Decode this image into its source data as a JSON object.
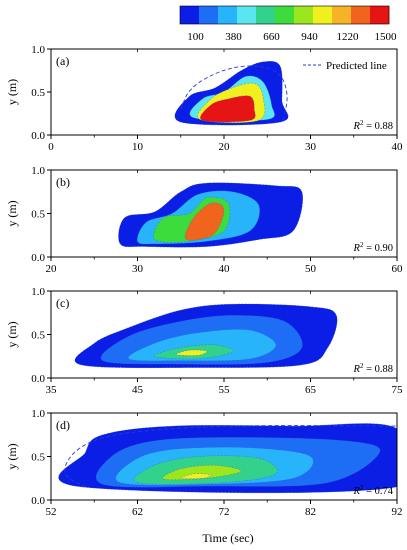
{
  "colorbar": {
    "ticks": [
      "100",
      "380",
      "660",
      "940",
      "1220",
      "1500"
    ],
    "colors": [
      "#0a1ee6",
      "#1e6ef5",
      "#28b4fa",
      "#5ae6f0",
      "#32d28c",
      "#3cdc3c",
      "#9be61e",
      "#f0f01e",
      "#f5b428",
      "#f0641e",
      "#e61414"
    ]
  },
  "chart_data": [
    {
      "type": "contour",
      "panel_label": "(a)",
      "ylabel": "y (m)",
      "xlim": [
        0,
        40
      ],
      "ylim": [
        0,
        1.0
      ],
      "xticks": [
        "0",
        "10",
        "20",
        "30",
        "40"
      ],
      "yticks": [
        "0.0",
        "0.5",
        "1.0"
      ],
      "r2_label": "R",
      "r2_value": "0.88",
      "legend": "Predicted line",
      "blobs": [
        {
          "level": 0,
          "pts": [
            [
              15,
              0.15
            ],
            [
              16,
              0.45
            ],
            [
              19,
              0.55
            ],
            [
              22,
              0.75
            ],
            [
              24.5,
              0.85
            ],
            [
              26.5,
              0.8
            ],
            [
              26.7,
              0.4
            ],
            [
              26.5,
              0.15
            ]
          ]
        },
        {
          "level": 3,
          "pts": [
            [
              16.5,
              0.2
            ],
            [
              17.5,
              0.42
            ],
            [
              20,
              0.5
            ],
            [
              22.5,
              0.68
            ],
            [
              24.5,
              0.62
            ],
            [
              25.5,
              0.35
            ],
            [
              25,
              0.18
            ]
          ]
        },
        {
          "level": 7,
          "pts": [
            [
              17.2,
              0.18
            ],
            [
              18.5,
              0.42
            ],
            [
              21,
              0.55
            ],
            [
              23.5,
              0.6
            ],
            [
              24.5,
              0.45
            ],
            [
              24,
              0.17
            ]
          ]
        },
        {
          "level": 10,
          "pts": [
            [
              17.5,
              0.17
            ],
            [
              18.5,
              0.35
            ],
            [
              20.5,
              0.42
            ],
            [
              23,
              0.45
            ],
            [
              23.5,
              0.3
            ],
            [
              23,
              0.17
            ]
          ]
        }
      ],
      "predicted_line": [
        [
          15,
          0.3
        ],
        [
          16,
          0.55
        ],
        [
          19.5,
          0.75
        ],
        [
          23,
          0.82
        ],
        [
          26.5,
          0.75
        ],
        [
          27.5,
          0.45
        ],
        [
          26.8,
          0.17
        ]
      ]
    },
    {
      "type": "contour",
      "panel_label": "(b)",
      "ylabel": "y (m)",
      "xlim": [
        20,
        60
      ],
      "ylim": [
        0,
        1.0
      ],
      "xticks": [
        "20",
        "30",
        "40",
        "50",
        "60"
      ],
      "yticks": [
        "0.0",
        "0.5",
        "1.0"
      ],
      "r2_label": "R",
      "r2_value": "0.90",
      "blobs": [
        {
          "level": 0,
          "pts": [
            [
              28,
              0.15
            ],
            [
              28.5,
              0.45
            ],
            [
              32,
              0.52
            ],
            [
              35,
              0.75
            ],
            [
              38,
              0.85
            ],
            [
              46,
              0.82
            ],
            [
              49,
              0.75
            ],
            [
              48,
              0.3
            ],
            [
              44,
              0.2
            ],
            [
              38,
              0.12
            ],
            [
              31,
              0.12
            ]
          ]
        },
        {
          "level": 2,
          "pts": [
            [
              30,
              0.18
            ],
            [
              31,
              0.4
            ],
            [
              34,
              0.5
            ],
            [
              37,
              0.72
            ],
            [
              41,
              0.75
            ],
            [
              44,
              0.6
            ],
            [
              43,
              0.3
            ],
            [
              38,
              0.18
            ],
            [
              32,
              0.15
            ]
          ]
        },
        {
          "level": 5,
          "pts": [
            [
              32,
              0.2
            ],
            [
              33,
              0.45
            ],
            [
              36,
              0.5
            ],
            [
              38,
              0.68
            ],
            [
              40.5,
              0.62
            ],
            [
              40,
              0.3
            ],
            [
              36,
              0.18
            ]
          ]
        },
        {
          "level": 9,
          "pts": [
            [
              35.5,
              0.22
            ],
            [
              36.5,
              0.45
            ],
            [
              38.5,
              0.62
            ],
            [
              40,
              0.55
            ],
            [
              39,
              0.28
            ],
            [
              37,
              0.2
            ]
          ]
        }
      ]
    },
    {
      "type": "contour",
      "panel_label": "(c)",
      "ylabel": "y (m)",
      "xlim": [
        35,
        75
      ],
      "ylim": [
        0,
        1.0
      ],
      "xticks": [
        "35",
        "45",
        "55",
        "65",
        "75"
      ],
      "yticks": [
        "0.0",
        "0.5",
        "1.0"
      ],
      "r2_label": "R",
      "r2_value": "0.88",
      "blobs": [
        {
          "level": 0,
          "pts": [
            [
              38.5,
              0.15
            ],
            [
              40,
              0.4
            ],
            [
              44,
              0.58
            ],
            [
              50,
              0.78
            ],
            [
              56,
              0.85
            ],
            [
              65,
              0.82
            ],
            [
              68,
              0.72
            ],
            [
              67,
              0.35
            ],
            [
              64,
              0.15
            ],
            [
              52,
              0.12
            ]
          ]
        },
        {
          "level": 1,
          "pts": [
            [
              41,
              0.2
            ],
            [
              44,
              0.48
            ],
            [
              50,
              0.65
            ],
            [
              56,
              0.72
            ],
            [
              62,
              0.65
            ],
            [
              64,
              0.35
            ],
            [
              60,
              0.18
            ],
            [
              50,
              0.16
            ]
          ]
        },
        {
          "level": 2,
          "pts": [
            [
              44,
              0.22
            ],
            [
              47,
              0.4
            ],
            [
              52,
              0.52
            ],
            [
              58,
              0.55
            ],
            [
              61,
              0.38
            ],
            [
              58,
              0.22
            ],
            [
              50,
              0.2
            ]
          ]
        },
        {
          "level": 4,
          "pts": [
            [
              47,
              0.25
            ],
            [
              50,
              0.35
            ],
            [
              54,
              0.38
            ],
            [
              56,
              0.3
            ],
            [
              52,
              0.22
            ]
          ]
        },
        {
          "level": 7,
          "pts": [
            [
              49.5,
              0.27
            ],
            [
              51,
              0.32
            ],
            [
              53,
              0.31
            ],
            [
              52,
              0.26
            ]
          ]
        }
      ]
    },
    {
      "type": "contour",
      "panel_label": "(d)",
      "ylabel": "y (m)",
      "xlabel": "Time (sec)",
      "xlim": [
        52,
        92
      ],
      "ylim": [
        0,
        1.0
      ],
      "xticks": [
        "52",
        "62",
        "72",
        "82",
        "92"
      ],
      "yticks": [
        "0.0",
        "0.5",
        "1.0"
      ],
      "r2_label": "R",
      "r2_value": "0.74",
      "blobs": [
        {
          "level": 0,
          "pts": [
            [
              55.5,
              0.15
            ],
            [
              56,
              0.55
            ],
            [
              58,
              0.75
            ],
            [
              66,
              0.85
            ],
            [
              80,
              0.85
            ],
            [
              92,
              0.82
            ],
            [
              92,
              0.15
            ]
          ]
        },
        {
          "level": 1,
          "pts": [
            [
              58,
              0.18
            ],
            [
              59,
              0.5
            ],
            [
              64,
              0.68
            ],
            [
              74,
              0.72
            ],
            [
              86,
              0.68
            ],
            [
              90,
              0.55
            ],
            [
              84,
              0.2
            ],
            [
              70,
              0.16
            ]
          ]
        },
        {
          "level": 2,
          "pts": [
            [
              60,
              0.2
            ],
            [
              61.5,
              0.45
            ],
            [
              66,
              0.58
            ],
            [
              75,
              0.6
            ],
            [
              82,
              0.5
            ],
            [
              80,
              0.25
            ],
            [
              70,
              0.18
            ]
          ]
        },
        {
          "level": 4,
          "pts": [
            [
              62,
              0.2
            ],
            [
              64,
              0.4
            ],
            [
              69,
              0.5
            ],
            [
              76,
              0.48
            ],
            [
              78,
              0.3
            ],
            [
              72,
              0.2
            ]
          ]
        },
        {
          "level": 6,
          "pts": [
            [
              65,
              0.24
            ],
            [
              67,
              0.36
            ],
            [
              71,
              0.4
            ],
            [
              74,
              0.33
            ],
            [
              70,
              0.25
            ]
          ]
        },
        {
          "level": 7,
          "pts": [
            [
              67,
              0.25
            ],
            [
              68.5,
              0.3
            ],
            [
              70.5,
              0.29
            ],
            [
              69.5,
              0.25
            ]
          ]
        }
      ],
      "predicted_line": [
        [
          56,
          0.15
        ],
        [
          53,
          0.3
        ],
        [
          55,
          0.62
        ],
        [
          60,
          0.78
        ],
        [
          72,
          0.86
        ],
        [
          92,
          0.85
        ]
      ]
    }
  ]
}
